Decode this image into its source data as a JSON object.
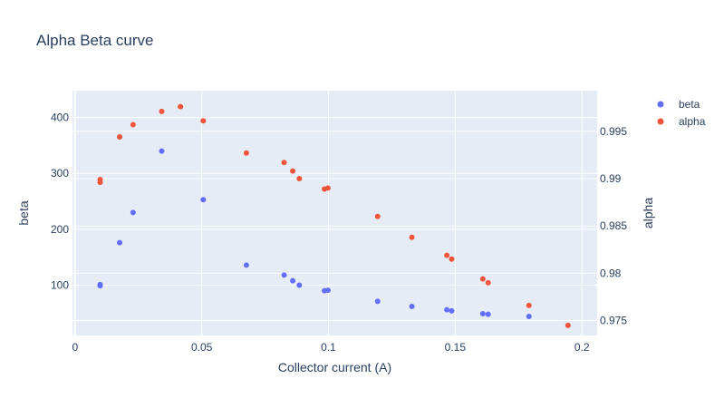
{
  "chart_data": {
    "type": "scatter",
    "title": "Alpha Beta curve",
    "xlabel": "Collector current (A)",
    "ylabel": "beta",
    "y2label": "alpha",
    "xlim": [
      -0.001,
      0.206
    ],
    "ylim": [
      10,
      448
    ],
    "y2lim": [
      0.97343,
      0.99929
    ],
    "xticks": [
      0,
      0.05,
      0.1,
      0.15,
      0.2
    ],
    "xtick_labels": [
      "0",
      "0.05",
      "0.1",
      "0.15",
      "0.2"
    ],
    "yticks": [
      100,
      200,
      300,
      400
    ],
    "ytick_labels": [
      "100",
      "200",
      "300",
      "400"
    ],
    "y2ticks": [
      0.975,
      0.98,
      0.985,
      0.99,
      0.995
    ],
    "y2tick_labels": [
      "0.975",
      "0.98",
      "0.985",
      "0.99",
      "0.995"
    ],
    "grid": true,
    "legend_position": "top-right",
    "series": [
      {
        "name": "beta",
        "axis": "y",
        "color": "#636efa",
        "points": [
          [
            0.0099,
            99
          ],
          [
            0.0099,
            101
          ],
          [
            0.0176,
            176
          ],
          [
            0.0229,
            230
          ],
          [
            0.0342,
            340
          ],
          [
            0.0506,
            253
          ],
          [
            0.0676,
            136
          ],
          [
            0.0825,
            118
          ],
          [
            0.0859,
            108
          ],
          [
            0.0885,
            100
          ],
          [
            0.0984,
            90
          ],
          [
            0.0998,
            91
          ],
          [
            0.1194,
            71
          ],
          [
            0.1329,
            62
          ],
          [
            0.1467,
            56
          ],
          [
            0.1486,
            54
          ],
          [
            0.1609,
            49
          ],
          [
            0.163,
            48
          ],
          [
            0.1791,
            44
          ]
        ]
      },
      {
        "name": "alpha",
        "axis": "y2",
        "color": "#ef553b",
        "points": [
          [
            0.0099,
            0.9896
          ],
          [
            0.0099,
            0.9899
          ],
          [
            0.0176,
            0.9944
          ],
          [
            0.0229,
            0.9957
          ],
          [
            0.0342,
            0.9971
          ],
          [
            0.0416,
            0.9976
          ],
          [
            0.0506,
            0.9961
          ],
          [
            0.0676,
            0.9927
          ],
          [
            0.0825,
            0.9917
          ],
          [
            0.0859,
            0.9908
          ],
          [
            0.0885,
            0.99
          ],
          [
            0.0984,
            0.9889
          ],
          [
            0.0998,
            0.989
          ],
          [
            0.1194,
            0.986
          ],
          [
            0.1329,
            0.9838
          ],
          [
            0.1467,
            0.9819
          ],
          [
            0.1486,
            0.9815
          ],
          [
            0.1609,
            0.9794
          ],
          [
            0.163,
            0.979
          ],
          [
            0.1791,
            0.9766
          ],
          [
            0.1945,
            0.9745
          ]
        ]
      }
    ]
  }
}
